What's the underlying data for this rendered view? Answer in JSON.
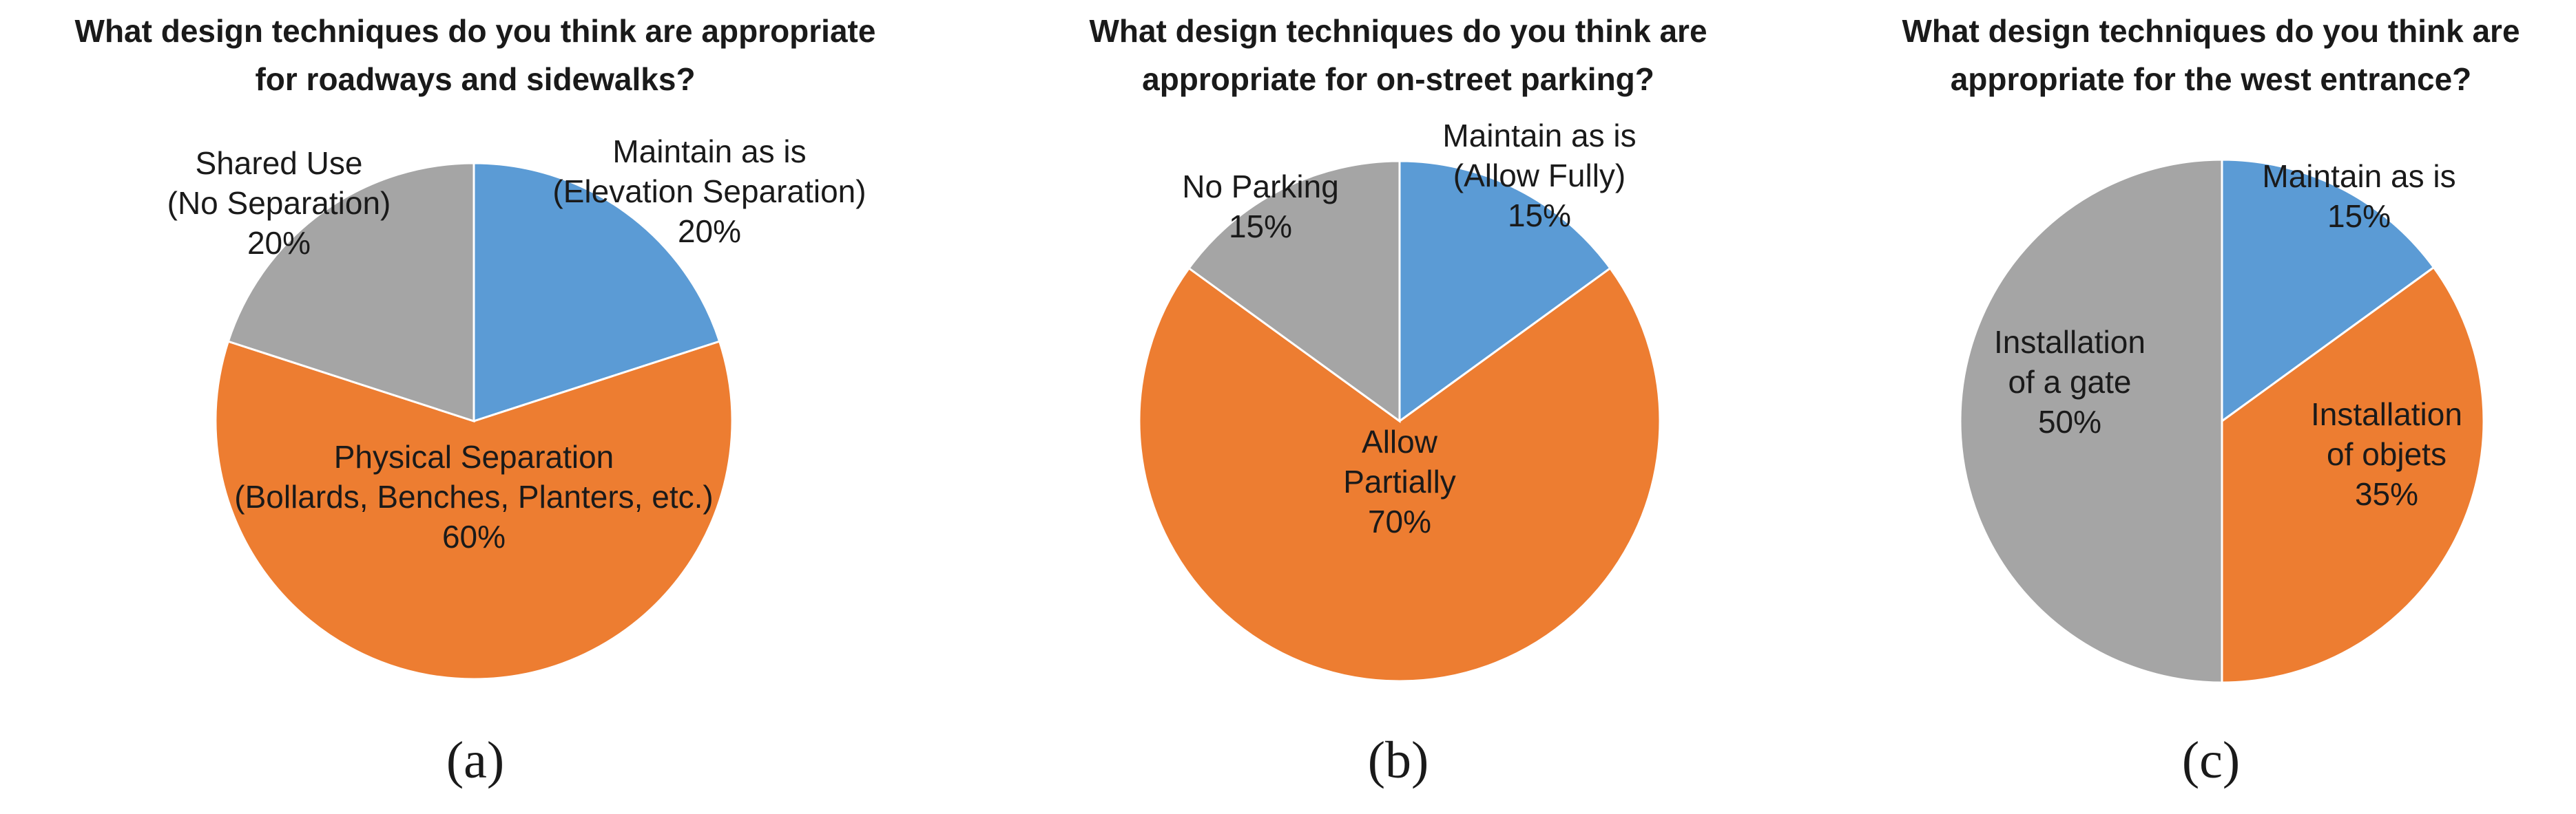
{
  "chart_data": [
    {
      "type": "pie",
      "title_lines": [
        "What design techniques do you think are appropriate",
        "for roadways and sidewalks?"
      ],
      "caption": "(a)",
      "slices": [
        {
          "label_lines": [
            "Maintain as is",
            "(Elevation Separation)",
            "20%"
          ],
          "value": 20,
          "color": "#5b9bd5"
        },
        {
          "label_lines": [
            "Physical Separation",
            "(Bollards, Benches, Planters, etc.)",
            "60%"
          ],
          "value": 60,
          "color": "#ed7d31"
        },
        {
          "label_lines": [
            "Shared Use",
            "(No Separation)",
            "20%"
          ],
          "value": 20,
          "color": "#a5a5a5"
        }
      ]
    },
    {
      "type": "pie",
      "title_lines": [
        "What design techniques do you think are",
        "appropriate for on-street parking?"
      ],
      "caption": "(b)",
      "slices": [
        {
          "label_lines": [
            "Maintain as is",
            "(Allow Fully)",
            "15%"
          ],
          "value": 15,
          "color": "#5b9bd5"
        },
        {
          "label_lines": [
            "Allow",
            "Partially",
            "70%"
          ],
          "value": 70,
          "color": "#ed7d31"
        },
        {
          "label_lines": [
            "No Parking",
            "15%"
          ],
          "value": 15,
          "color": "#a5a5a5"
        }
      ]
    },
    {
      "type": "pie",
      "title_lines": [
        "What design techniques do you think are",
        "appropriate for the west entrance?"
      ],
      "caption": "(c)",
      "slices": [
        {
          "label_lines": [
            "Maintain as is",
            "15%"
          ],
          "value": 15,
          "color": "#5b9bd5"
        },
        {
          "label_lines": [
            "Installation",
            "of objets",
            "35%"
          ],
          "value": 35,
          "color": "#ed7d31"
        },
        {
          "label_lines": [
            "Installation",
            "of a gate",
            "50%"
          ],
          "value": 50,
          "color": "#a5a5a5"
        }
      ]
    }
  ]
}
